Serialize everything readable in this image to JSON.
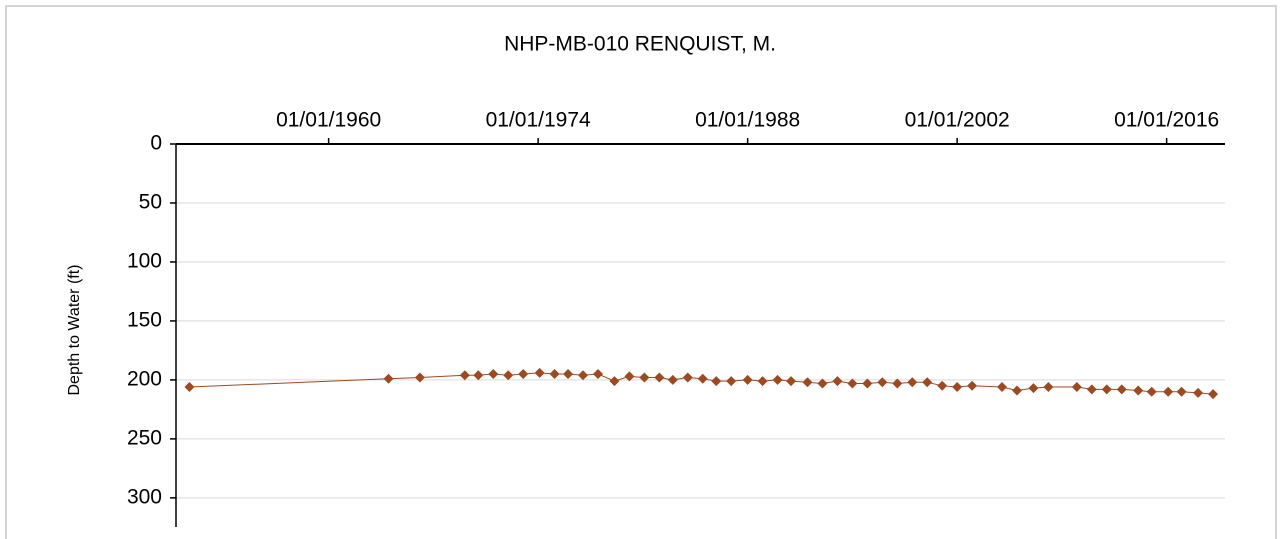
{
  "chart_data": {
    "type": "line",
    "title": "NHP-MB-010 RENQUIST, M.",
    "y_label": "Depth to Water (ft)",
    "x": [
      1950.7,
      1964.0,
      1966.1,
      1969.1,
      1970.0,
      1971.0,
      1972.0,
      1973.0,
      1974.1,
      1975.1,
      1976.0,
      1977.0,
      1978.0,
      1979.1,
      1980.1,
      1981.1,
      1982.1,
      1983.0,
      1984.0,
      1985.0,
      1985.9,
      1986.9,
      1988.0,
      1989.0,
      1990.0,
      1990.9,
      1992.0,
      1993.0,
      1994.0,
      1995.0,
      1996.0,
      1997.0,
      1998.0,
      1999.0,
      2000.0,
      2001.0,
      2002.0,
      2003.0,
      2005.0,
      2006.0,
      2007.1,
      2008.1,
      2010.0,
      2011.0,
      2012.0,
      2013.0,
      2014.1,
      2015.0,
      2016.1,
      2017.0,
      2018.1,
      2019.1
    ],
    "series": [
      {
        "name": "Depth to Water",
        "color": "#9c4a22",
        "values": [
          206,
          199,
          198,
          196,
          196,
          195,
          196,
          195,
          194,
          195,
          195,
          196,
          195,
          201,
          197,
          198,
          198,
          200,
          198,
          199,
          201,
          201,
          200,
          201,
          200,
          201,
          202,
          203,
          201,
          203,
          203,
          202,
          203,
          202,
          202,
          205,
          206,
          205,
          206,
          209,
          207,
          206,
          206,
          208,
          208,
          208,
          209,
          210,
          210,
          210,
          211,
          212
        ]
      }
    ],
    "xlim": [
      1949.8,
      2019.9
    ],
    "xticks": [
      {
        "value": 1960,
        "label": "01/01/1960"
      },
      {
        "value": 1974,
        "label": "01/01/1974"
      },
      {
        "value": 1988,
        "label": "01/01/1988"
      },
      {
        "value": 2002,
        "label": "01/01/2002"
      },
      {
        "value": 2016,
        "label": "01/01/2016"
      }
    ],
    "ylim": [
      0,
      323
    ],
    "yticks": [
      0,
      50,
      100,
      150,
      200,
      250,
      300
    ],
    "y_inverted": true,
    "grid": true
  }
}
